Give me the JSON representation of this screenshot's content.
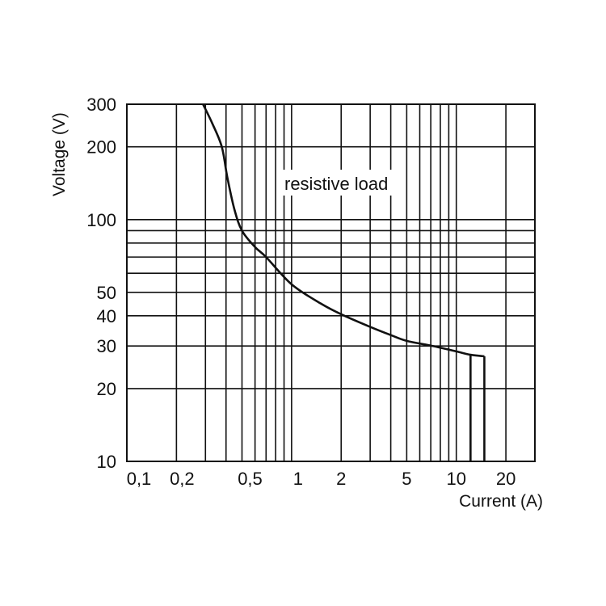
{
  "chart_data": {
    "type": "line",
    "title": "",
    "xlabel": "Current (A)",
    "ylabel": "Voltage (V)",
    "xscale": "log",
    "yscale": "log",
    "xlim": [
      0.1,
      30
    ],
    "ylim": [
      10,
      300
    ],
    "grid": true,
    "x_gridlines": [
      0.1,
      0.2,
      0.3,
      0.4,
      0.5,
      0.6,
      0.7,
      0.8,
      0.9,
      1,
      2,
      3,
      4,
      5,
      6,
      7,
      8,
      9,
      10,
      20,
      30
    ],
    "y_gridlines": [
      10,
      20,
      30,
      40,
      50,
      60,
      70,
      80,
      90,
      100,
      200,
      300
    ],
    "x_ticks": [
      {
        "value": 0.1,
        "label": "0,1"
      },
      {
        "value": 0.2,
        "label": "0,2"
      },
      {
        "value": 0.5,
        "label": "0,5"
      },
      {
        "value": 1,
        "label": "1"
      },
      {
        "value": 2,
        "label": "2"
      },
      {
        "value": 5,
        "label": "5"
      },
      {
        "value": 10,
        "label": "10"
      },
      {
        "value": 20,
        "label": "20"
      }
    ],
    "y_ticks": [
      {
        "value": 300,
        "label": "300"
      },
      {
        "value": 200,
        "label": "200"
      },
      {
        "value": 100,
        "label": "100"
      },
      {
        "value": 50,
        "label": "50"
      },
      {
        "value": 40,
        "label": "40"
      },
      {
        "value": 30,
        "label": "30"
      },
      {
        "value": 20,
        "label": "20"
      },
      {
        "value": 10,
        "label": "10"
      }
    ],
    "annotation": "resistive load",
    "series": [
      {
        "x": [
          0.29,
          0.33,
          0.377,
          0.407,
          0.45,
          0.5,
          0.6,
          0.7,
          1,
          1.5,
          2,
          3,
          4,
          5,
          7.2,
          10,
          12.2,
          14.8
        ],
        "y": [
          300,
          250,
          200,
          150,
          110,
          90,
          77,
          70,
          54,
          45,
          40.6,
          36,
          33.3,
          31.5,
          30,
          28.5,
          27.6,
          27.2
        ]
      }
    ],
    "limits": [
      {
        "x": 12.2,
        "from_y": 27.6,
        "to_y": 10
      },
      {
        "x": 14.8,
        "from_y": 27.2,
        "to_y": 10
      }
    ],
    "line_color": "#111111"
  }
}
